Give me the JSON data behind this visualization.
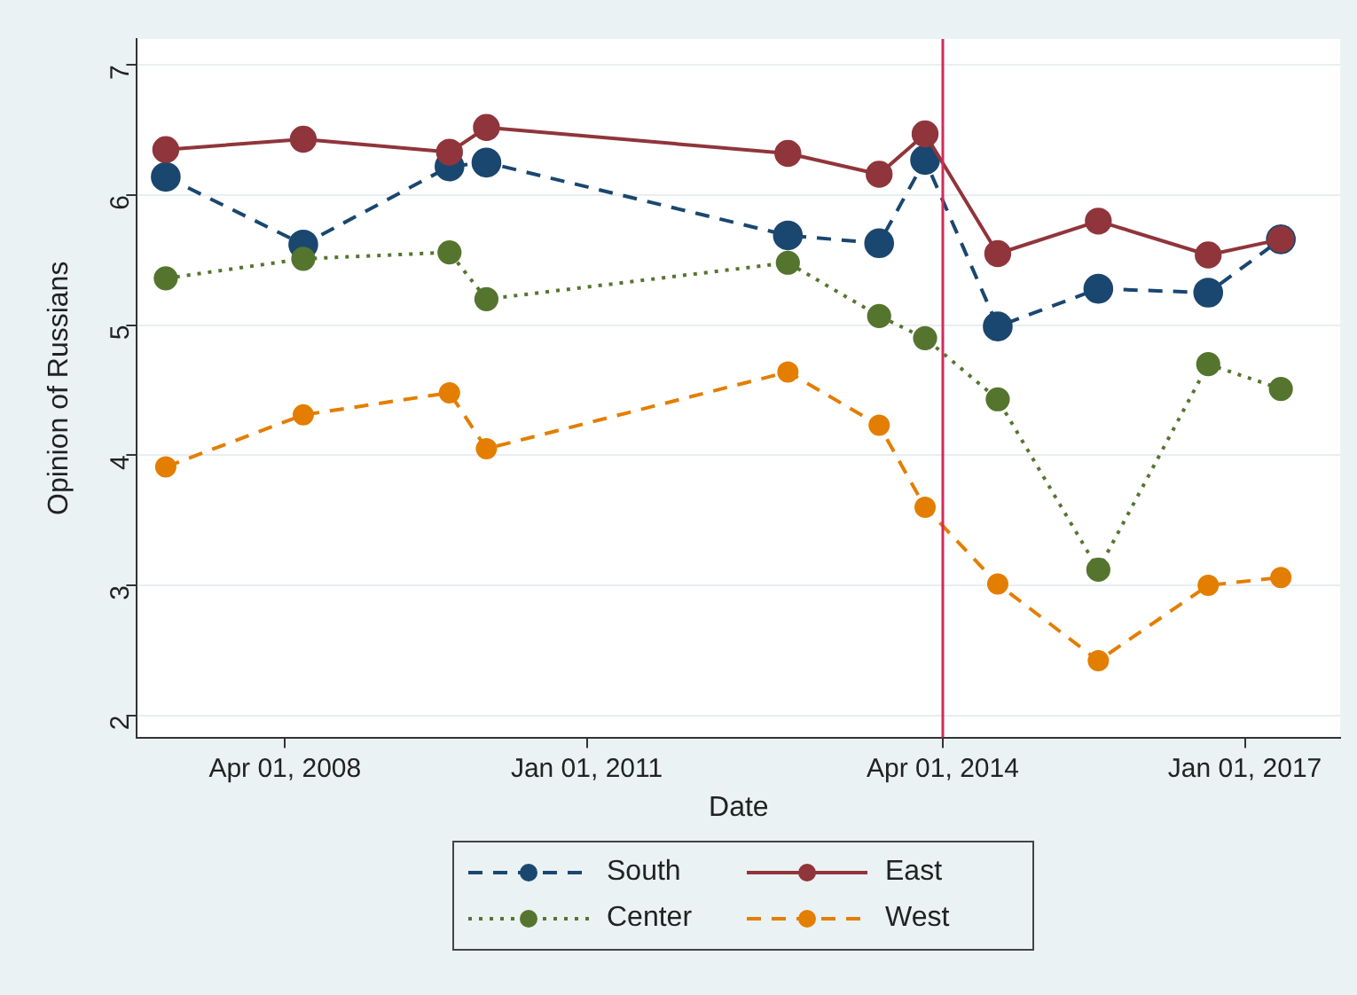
{
  "chart_data": {
    "type": "line",
    "xlabel": "Date",
    "ylabel": "Opinion of Russians",
    "x": [
      "2007-03",
      "2008-06",
      "2009-10",
      "2010-02",
      "2012-11",
      "2013-09",
      "2014-02",
      "2014-10",
      "2015-09",
      "2016-09",
      "2017-05"
    ],
    "series": [
      {
        "name": "South",
        "color": "#1a476f",
        "line_style": "dashed",
        "values": [
          6.14,
          5.62,
          6.22,
          6.25,
          5.69,
          5.63,
          6.27,
          4.99,
          5.28,
          5.25,
          5.66
        ]
      },
      {
        "name": "East",
        "color": "#90353b",
        "line_style": "solid",
        "values": [
          6.35,
          6.43,
          6.33,
          6.52,
          6.32,
          6.16,
          6.47,
          5.55,
          5.8,
          5.54,
          5.66
        ]
      },
      {
        "name": "Center",
        "color": "#55752f",
        "line_style": "dotted",
        "values": [
          5.36,
          5.51,
          5.56,
          5.2,
          5.48,
          5.07,
          4.9,
          4.43,
          3.12,
          4.7,
          4.51
        ]
      },
      {
        "name": "West",
        "color": "#e37e00",
        "line_style": "dashed",
        "values": [
          3.91,
          4.31,
          4.48,
          4.05,
          4.64,
          4.23,
          3.6,
          3.01,
          2.42,
          3.0,
          3.06
        ]
      }
    ],
    "xlim": [
      "2006-11-25",
      "2017-11-15"
    ],
    "xticks": [
      {
        "value": "2008-04-01",
        "label": "Apr 01, 2008"
      },
      {
        "value": "2011-01-01",
        "label": "Jan 01, 2011"
      },
      {
        "value": "2014-04-01",
        "label": "Apr 01, 2014"
      },
      {
        "value": "2017-01-01",
        "label": "Jan 01, 2017"
      }
    ],
    "ylim": [
      1.83,
      7.2
    ],
    "yticks": [
      2,
      3,
      4,
      5,
      6,
      7
    ],
    "ref_lines": [
      {
        "axis": "x",
        "value": "2014-04-01",
        "color": "#d42a5b"
      }
    ],
    "grid": "y",
    "legend": "bottom",
    "marker": "circle"
  }
}
